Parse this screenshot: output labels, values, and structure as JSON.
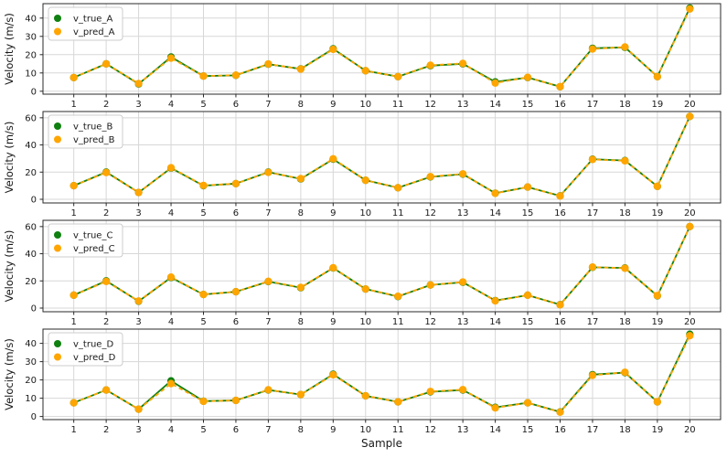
{
  "figure": {
    "xlabel": "Sample",
    "ylabel": "Velocity (m/s)"
  },
  "style": {
    "true_color": "#108010",
    "pred_color": "#FFA500",
    "grid_color": "#d7d7d7",
    "spine_color": "#2a2a2a",
    "text_color": "#1a1a1a",
    "legend_border": "#cccccc",
    "legend_bg": "#ffffff"
  },
  "chart_data": [
    {
      "id": "A",
      "type": "line",
      "title": "",
      "xlabel": "",
      "ylabel": "Velocity (m/s)",
      "x": [
        1,
        2,
        3,
        4,
        5,
        6,
        7,
        8,
        9,
        10,
        11,
        12,
        13,
        14,
        15,
        16,
        17,
        18,
        19,
        20
      ],
      "xticks": [
        1,
        2,
        3,
        4,
        5,
        6,
        7,
        8,
        9,
        10,
        11,
        12,
        13,
        14,
        15,
        16,
        17,
        18,
        19,
        20
      ],
      "yticks": [
        0,
        10,
        20,
        30,
        40
      ],
      "ylim": [
        -1.6,
        47.9
      ],
      "xlim": [
        0.05,
        20.95
      ],
      "grid": true,
      "legend_position": "upper left",
      "series": [
        {
          "name": "v_true_A",
          "color": "#108010",
          "linestyle": "solid",
          "values": [
            7.5,
            15,
            4,
            18.7,
            8.3,
            8.7,
            14.8,
            12.2,
            23.2,
            11.2,
            8,
            14,
            15,
            5.1,
            7.5,
            2.5,
            23.5,
            24,
            8,
            45.5
          ]
        },
        {
          "name": "v_pred_A",
          "color": "#FFA500",
          "linestyle": "dashed",
          "values": [
            7.5,
            15,
            4.2,
            18.1,
            8.3,
            8.8,
            14.9,
            12.1,
            22.9,
            11.2,
            8,
            14.2,
            15.2,
            4.5,
            7.6,
            2.5,
            23.1,
            24.2,
            8,
            45
          ]
        }
      ]
    },
    {
      "id": "B",
      "type": "line",
      "title": "",
      "xlabel": "",
      "ylabel": "Velocity (m/s)",
      "x": [
        1,
        2,
        3,
        4,
        5,
        6,
        7,
        8,
        9,
        10,
        11,
        12,
        13,
        14,
        15,
        16,
        17,
        18,
        19,
        20
      ],
      "xticks": [
        1,
        2,
        3,
        4,
        5,
        6,
        7,
        8,
        9,
        10,
        11,
        12,
        13,
        14,
        15,
        16,
        17,
        18,
        19,
        20
      ],
      "yticks": [
        0,
        20,
        40,
        60
      ],
      "ylim": [
        -2.7,
        64.6
      ],
      "xlim": [
        0.05,
        20.95
      ],
      "grid": true,
      "legend_position": "upper left",
      "series": [
        {
          "name": "v_true_B",
          "color": "#108010",
          "linestyle": "solid",
          "values": [
            10,
            20,
            5,
            23,
            10,
            11.5,
            20,
            15,
            29.5,
            14,
            8.5,
            16.5,
            18.5,
            4.5,
            9,
            2.5,
            29.5,
            28.5,
            9.5,
            61
          ]
        },
        {
          "name": "v_pred_B",
          "color": "#FFA500",
          "linestyle": "dashed",
          "values": [
            10,
            19.7,
            5,
            23.2,
            10.2,
            11.5,
            19.8,
            15.2,
            29.8,
            14,
            8.5,
            16.7,
            18.7,
            4.4,
            9,
            2.4,
            29.3,
            28.3,
            9.5,
            61
          ]
        }
      ]
    },
    {
      "id": "C",
      "type": "line",
      "title": "",
      "xlabel": "",
      "ylabel": "Velocity (m/s)",
      "x": [
        1,
        2,
        3,
        4,
        5,
        6,
        7,
        8,
        9,
        10,
        11,
        12,
        13,
        14,
        15,
        16,
        17,
        18,
        19,
        20
      ],
      "xticks": [
        1,
        2,
        3,
        4,
        5,
        6,
        7,
        8,
        9,
        10,
        11,
        12,
        13,
        14,
        15,
        16,
        17,
        18,
        19,
        20
      ],
      "yticks": [
        0,
        20,
        40,
        60
      ],
      "ylim": [
        -2.7,
        64.6
      ],
      "xlim": [
        0.05,
        20.95
      ],
      "grid": true,
      "legend_position": "upper left",
      "series": [
        {
          "name": "v_true_C",
          "color": "#108010",
          "linestyle": "solid",
          "values": [
            9.5,
            20,
            5,
            22.5,
            10,
            12,
            19.5,
            15,
            29.5,
            14,
            8.5,
            17,
            19,
            5.5,
            9.5,
            2.5,
            30,
            29.5,
            9,
            60
          ]
        },
        {
          "name": "v_pred_C",
          "color": "#FFA500",
          "linestyle": "dashed",
          "values": [
            9.5,
            19.6,
            5.2,
            22.8,
            10,
            12,
            19.7,
            15.2,
            29.7,
            14,
            8.7,
            17,
            19.2,
            5.3,
            9.5,
            2.4,
            30.2,
            29.3,
            9.2,
            60
          ]
        }
      ]
    },
    {
      "id": "D",
      "type": "line",
      "title": "",
      "xlabel": "Sample",
      "ylabel": "Velocity (m/s)",
      "x": [
        1,
        2,
        3,
        4,
        5,
        6,
        7,
        8,
        9,
        10,
        11,
        12,
        13,
        14,
        15,
        16,
        17,
        18,
        19,
        20
      ],
      "xticks": [
        1,
        2,
        3,
        4,
        5,
        6,
        7,
        8,
        9,
        10,
        11,
        12,
        13,
        14,
        15,
        16,
        17,
        18,
        19,
        20
      ],
      "yticks": [
        0,
        10,
        20,
        30,
        40
      ],
      "ylim": [
        -1.7,
        47.8
      ],
      "xlim": [
        0.05,
        20.95
      ],
      "grid": true,
      "legend_position": "upper left",
      "series": [
        {
          "name": "v_true_D",
          "color": "#108010",
          "linestyle": "solid",
          "values": [
            7.5,
            14.5,
            4,
            19.5,
            8.4,
            8.8,
            14.5,
            12,
            23.1,
            11.3,
            8,
            13.5,
            14.5,
            5,
            7.5,
            2.5,
            22.9,
            24,
            8,
            45
          ]
        },
        {
          "name": "v_pred_D",
          "color": "#FFA500",
          "linestyle": "dashed",
          "values": [
            7.5,
            14.5,
            4,
            18,
            8.3,
            8.8,
            14.6,
            12,
            22.8,
            11.3,
            8,
            13.7,
            14.7,
            4.7,
            7.5,
            2.4,
            22.5,
            24.2,
            8,
            44.2
          ]
        }
      ]
    }
  ]
}
